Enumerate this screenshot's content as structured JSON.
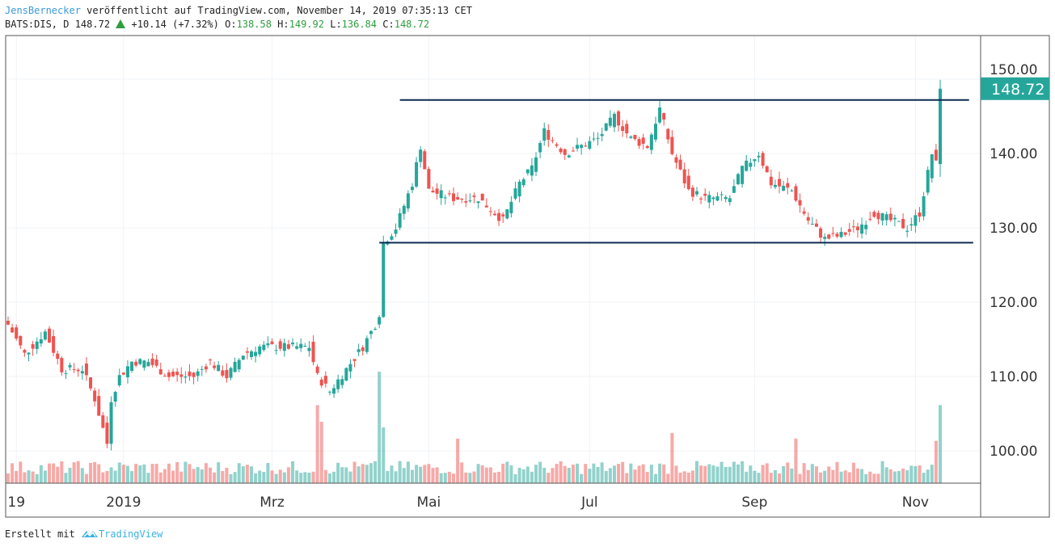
{
  "header": {
    "author": "JensBernecker",
    "published": " veröffentlicht auf TradingView.com, November 14, 2019 07:35:13 CET",
    "symbol": "BATS:DIS, D 148.72",
    "change": "+10.14 (+7.32%)",
    "o_label": "O:",
    "o": "138.58",
    "h_label": "H:",
    "h": "149.92",
    "l_label": "L:",
    "l": "136.84",
    "c_label": "C:",
    "c": "148.72"
  },
  "footer": {
    "made_with": "Erstellt mit",
    "brand": "TradingView"
  },
  "colors": {
    "up": "#26a69a",
    "down": "#ef5350",
    "line": "#0d2b52",
    "label_bg": "#26a69a"
  },
  "chart_data": {
    "type": "candlestick",
    "symbol": "BATS:DIS",
    "interval": "D",
    "ylim": [
      95,
      155
    ],
    "y_ticks": [
      "150.00",
      "140.00",
      "130.00",
      "120.00",
      "110.00",
      "100.00"
    ],
    "y_tick_values": [
      150,
      140,
      130,
      120,
      110,
      100
    ],
    "x_ticks": [
      "19",
      "2019",
      "Mrz",
      "Mai",
      "Jul",
      "Sep",
      "Nov"
    ],
    "x_tick_days": [
      2,
      28,
      64,
      102,
      141,
      181,
      220
    ],
    "last_price_label": "148.72",
    "last_price": 148.72,
    "total_days": 227,
    "close_keypoints": [
      [
        0,
        117
      ],
      [
        4,
        113
      ],
      [
        9,
        116
      ],
      [
        13,
        111
      ],
      [
        18,
        111
      ],
      [
        21,
        107
      ],
      [
        24,
        101
      ],
      [
        25,
        107
      ],
      [
        27,
        110
      ],
      [
        30,
        112
      ],
      [
        34,
        112
      ],
      [
        39,
        110
      ],
      [
        45,
        110
      ],
      [
        49,
        112
      ],
      [
        53,
        110
      ],
      [
        57,
        113
      ],
      [
        61,
        114
      ],
      [
        65,
        114
      ],
      [
        69,
        114
      ],
      [
        73,
        114
      ],
      [
        75,
        110
      ],
      [
        78,
        108
      ],
      [
        82,
        111
      ],
      [
        86,
        114
      ],
      [
        90,
        118
      ],
      [
        91,
        128
      ],
      [
        94,
        130
      ],
      [
        98,
        136
      ],
      [
        100,
        141
      ],
      [
        102,
        135
      ],
      [
        108,
        134
      ],
      [
        114,
        134
      ],
      [
        120,
        131
      ],
      [
        124,
        136
      ],
      [
        127,
        138
      ],
      [
        130,
        143
      ],
      [
        135,
        140
      ],
      [
        139,
        141
      ],
      [
        143,
        142
      ],
      [
        147,
        145
      ],
      [
        151,
        142
      ],
      [
        155,
        141
      ],
      [
        158,
        146
      ],
      [
        161,
        140
      ],
      [
        165,
        135
      ],
      [
        169,
        134
      ],
      [
        173,
        134
      ],
      [
        175,
        134
      ],
      [
        178,
        138
      ],
      [
        182,
        140
      ],
      [
        185,
        136
      ],
      [
        190,
        135
      ],
      [
        194,
        131
      ],
      [
        198,
        128.5
      ],
      [
        202,
        129
      ],
      [
        206,
        130
      ],
      [
        210,
        132
      ],
      [
        214,
        131
      ],
      [
        218,
        130
      ],
      [
        221,
        132
      ],
      [
        224,
        140
      ],
      [
        225,
        138.58
      ],
      [
        226,
        148.72
      ]
    ],
    "last_candle": {
      "open": 138.58,
      "high": 149.92,
      "low": 136.84,
      "close": 148.72
    },
    "volume_spikes": [
      [
        75,
        0.7
      ],
      [
        76,
        0.55
      ],
      [
        90,
        1.0
      ],
      [
        91,
        0.5
      ],
      [
        109,
        0.4
      ],
      [
        161,
        0.45
      ],
      [
        191,
        0.4
      ],
      [
        225,
        0.38
      ],
      [
        226,
        0.7
      ]
    ],
    "horizontal_lines": [
      {
        "name": "resistance",
        "price": 147.2,
        "from_day": 95,
        "to_day": 233
      },
      {
        "name": "support",
        "price": 128.0,
        "from_day": 90,
        "to_day": 234
      }
    ]
  }
}
